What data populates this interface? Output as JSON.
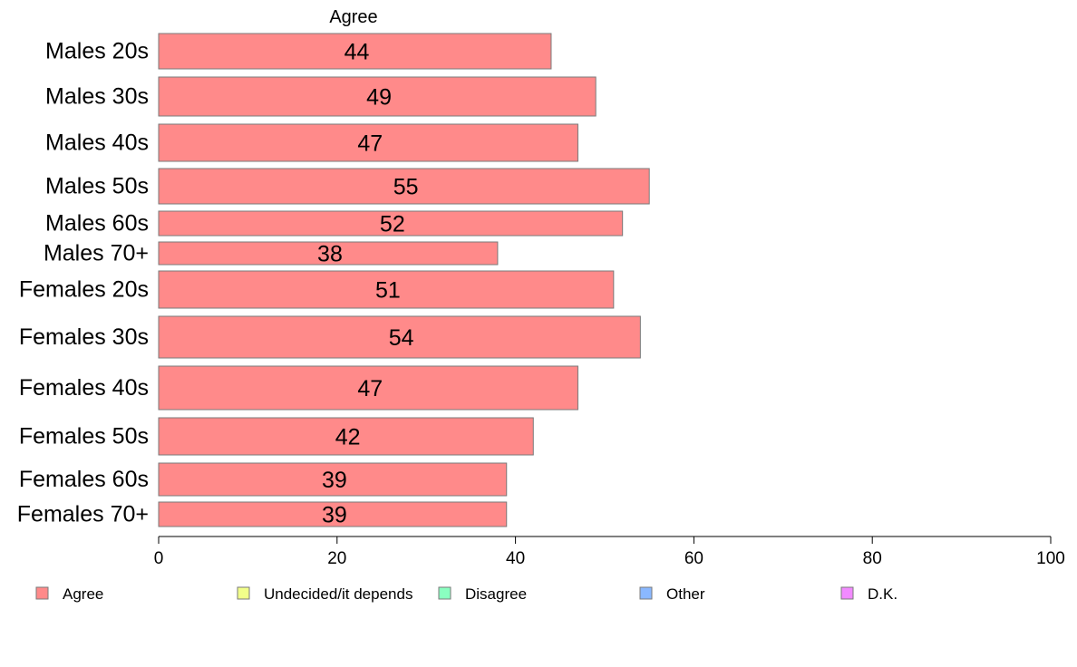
{
  "chart_data": {
    "type": "bar",
    "orientation": "horizontal",
    "column_title": "Agree",
    "categories": [
      "Males 20s",
      "Males 30s",
      "Males 40s",
      "Males 50s",
      "Males 60s",
      "Males 70+",
      "Females 20s",
      "Females 30s",
      "Females 40s",
      "Females 50s",
      "Females 60s",
      "Females 70+"
    ],
    "series": [
      {
        "name": "Agree",
        "color": "#ff8a8a",
        "values": [
          44,
          49,
          47,
          55,
          52,
          38,
          51,
          54,
          47,
          42,
          39,
          39
        ]
      }
    ],
    "xlim": [
      0,
      100
    ],
    "xticks": [
      0,
      20,
      40,
      60,
      80,
      100
    ],
    "legend": {
      "placement": "bottom",
      "items": [
        {
          "label": "Agree",
          "color": "#ff8a8a"
        },
        {
          "label": "Undecided/it depends",
          "color": "#f2ff8a"
        },
        {
          "label": "Disagree",
          "color": "#8affc0"
        },
        {
          "label": "Other",
          "color": "#8ab8ff"
        },
        {
          "label": "D.K.",
          "color": "#f28aff"
        }
      ]
    },
    "grid": false
  }
}
